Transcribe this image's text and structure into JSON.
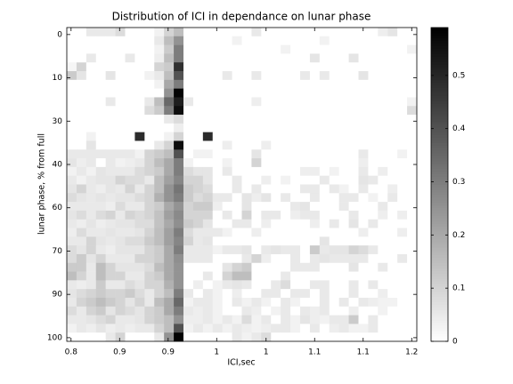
{
  "chart_data": {
    "type": "heatmap",
    "title": "Distribution of ICI in dependance on lunar phase",
    "xlabel": "ICI,sec",
    "ylabel": "lunar phase, % from full",
    "xlim": [
      0.795,
      1.206
    ],
    "ylim": [
      -2.3,
      101.2
    ],
    "y_reversed": true,
    "xticks": [
      0.8,
      {
        "value": 0.857,
        "label": "0.9"
      },
      {
        "value": 0.914,
        "label": "0.9"
      },
      {
        "value": 0.971,
        "label": "1"
      },
      {
        "value": 1.029,
        "label": "1"
      },
      {
        "value": 1.086,
        "label": "1.1"
      },
      {
        "value": 1.143,
        "label": "1.1"
      },
      1.2
    ],
    "yticks": [
      0,
      {
        "value": 14.29,
        "label": "10"
      },
      {
        "value": 28.57,
        "label": "30"
      },
      {
        "value": 42.86,
        "label": "40"
      },
      {
        "value": 57.14,
        "label": "60"
      },
      {
        "value": 71.43,
        "label": "70"
      },
      {
        "value": 85.71,
        "label": "90"
      },
      100
    ],
    "colormap": "gray-reversed",
    "clim": [
      0,
      0.59
    ],
    "cticks": [
      0,
      0.1,
      0.2,
      0.3,
      0.4,
      0.5
    ],
    "z": [
      [
        0,
        0,
        0.05,
        0.05,
        0.05,
        0.08,
        0,
        0,
        0,
        0.03,
        0.1,
        0.15,
        0,
        0,
        0,
        0,
        0,
        0,
        0,
        0.05,
        0,
        0,
        0,
        0,
        0,
        0,
        0,
        0,
        0,
        0,
        0,
        0,
        0.04,
        0.06,
        0,
        0
      ],
      [
        0,
        0,
        0,
        0,
        0,
        0,
        0,
        0,
        0,
        0.05,
        0.15,
        0.25,
        0,
        0,
        0,
        0,
        0,
        0.03,
        0,
        0,
        0,
        0,
        0,
        0,
        0,
        0,
        0.03,
        0,
        0,
        0,
        0,
        0,
        0,
        0,
        0,
        0
      ],
      [
        0,
        0,
        0,
        0,
        0,
        0,
        0,
        0,
        0,
        0.03,
        0.12,
        0.3,
        0,
        0,
        0,
        0,
        0,
        0,
        0,
        0,
        0,
        0,
        0.03,
        0,
        0,
        0,
        0,
        0,
        0,
        0,
        0,
        0,
        0,
        0,
        0,
        0.03
      ],
      [
        0,
        0,
        0.05,
        0,
        0,
        0,
        0.05,
        0,
        0,
        0.04,
        0.15,
        0.3,
        0,
        0,
        0,
        0,
        0,
        0,
        0,
        0,
        0,
        0,
        0,
        0,
        0,
        0.06,
        0,
        0,
        0,
        0.06,
        0,
        0,
        0,
        0,
        0,
        0
      ],
      [
        0.02,
        0.1,
        0,
        0,
        0,
        0,
        0,
        0,
        0,
        0.1,
        0.12,
        0.48,
        0,
        0,
        0,
        0,
        0,
        0,
        0,
        0,
        0,
        0,
        0,
        0,
        0,
        0,
        0,
        0,
        0,
        0,
        0,
        0,
        0,
        0,
        0,
        0
      ],
      [
        0.12,
        0.06,
        0,
        0,
        0.06,
        0,
        0,
        0,
        0.03,
        0.05,
        0.15,
        0.4,
        0,
        0,
        0,
        0,
        0.05,
        0,
        0,
        0.05,
        0,
        0,
        0,
        0,
        0.05,
        0,
        0.05,
        0,
        0,
        0,
        0.06,
        0,
        0,
        0,
        0,
        0
      ],
      [
        0,
        0,
        0,
        0,
        0,
        0,
        0,
        0,
        0,
        0.03,
        0.2,
        0.3,
        0,
        0,
        0,
        0,
        0,
        0,
        0,
        0,
        0,
        0,
        0,
        0,
        0,
        0,
        0,
        0,
        0,
        0,
        0,
        0,
        0,
        0,
        0,
        0
      ],
      [
        0,
        0,
        0,
        0,
        0,
        0,
        0,
        0,
        0,
        0,
        0.25,
        0.58,
        0,
        0,
        0,
        0,
        0,
        0,
        0,
        0,
        0,
        0,
        0,
        0,
        0,
        0,
        0,
        0,
        0,
        0,
        0,
        0,
        0,
        0,
        0,
        0
      ],
      [
        0,
        0,
        0,
        0,
        0.05,
        0,
        0,
        0,
        0.05,
        0.15,
        0.35,
        0.52,
        0.05,
        0,
        0,
        0,
        0,
        0,
        0,
        0.04,
        0,
        0,
        0,
        0,
        0,
        0,
        0,
        0,
        0,
        0,
        0,
        0,
        0,
        0,
        0,
        0.03
      ],
      [
        0,
        0,
        0,
        0,
        0,
        0,
        0,
        0,
        0.08,
        0.12,
        0.3,
        0.56,
        0,
        0,
        0,
        0,
        0,
        0,
        0,
        0,
        0,
        0,
        0,
        0,
        0,
        0,
        0,
        0,
        0,
        0,
        0,
        0,
        0,
        0,
        0,
        0.08
      ],
      [
        0,
        0,
        0,
        0,
        0,
        0,
        0,
        0,
        0,
        0,
        0.05,
        0.08,
        0,
        0,
        0,
        0,
        0,
        0,
        0,
        0,
        0,
        0,
        0,
        0,
        0,
        0,
        0,
        0,
        0,
        0,
        0,
        0,
        0,
        0,
        0,
        0
      ],
      [
        0,
        0,
        0,
        0,
        0,
        0,
        0,
        0,
        0,
        0,
        0,
        0.04,
        0,
        0,
        0,
        0,
        0,
        0,
        0,
        0,
        0,
        0,
        0,
        0,
        0,
        0,
        0,
        0,
        0,
        0,
        0,
        0,
        0,
        0,
        0,
        0
      ],
      [
        0,
        0,
        0.03,
        0,
        0,
        0,
        0,
        0.49,
        0,
        0,
        0.03,
        0.1,
        0,
        0,
        0.49,
        0,
        0,
        0,
        0,
        0,
        0,
        0,
        0,
        0,
        0,
        0,
        0,
        0,
        0,
        0,
        0,
        0,
        0,
        0,
        0,
        0
      ],
      [
        0,
        0,
        0.06,
        0,
        0,
        0,
        0,
        0,
        0,
        0.05,
        0.1,
        0.56,
        0,
        0,
        0,
        0,
        0.04,
        0,
        0,
        0,
        0.04,
        0,
        0,
        0,
        0,
        0,
        0,
        0,
        0,
        0,
        0,
        0,
        0,
        0,
        0,
        0
      ],
      [
        0.05,
        0.05,
        0.05,
        0.05,
        0.05,
        0.05,
        0.05,
        0.03,
        0.1,
        0.12,
        0.15,
        0.4,
        0,
        0.03,
        0.03,
        0,
        0,
        0,
        0,
        0.06,
        0,
        0,
        0,
        0,
        0,
        0,
        0,
        0,
        0,
        0,
        0.05,
        0,
        0,
        0,
        0.03,
        0
      ],
      [
        0.06,
        0.04,
        0.05,
        0,
        0.05,
        0.03,
        0.04,
        0.05,
        0.1,
        0.15,
        0.2,
        0.3,
        0.03,
        0,
        0,
        0,
        0.03,
        0,
        0,
        0.1,
        0,
        0,
        0,
        0,
        0,
        0,
        0,
        0,
        0,
        0,
        0.04,
        0,
        0,
        0,
        0,
        0
      ],
      [
        0.03,
        0.05,
        0.03,
        0.06,
        0.05,
        0.05,
        0.05,
        0.08,
        0.1,
        0.12,
        0.2,
        0.3,
        0.08,
        0.06,
        0.06,
        0,
        0.05,
        0,
        0,
        0,
        0,
        0,
        0,
        0,
        0.04,
        0.04,
        0,
        0.03,
        0,
        0,
        0.05,
        0,
        0.04,
        0,
        0,
        0
      ],
      [
        0.05,
        0.03,
        0.05,
        0.06,
        0.06,
        0.1,
        0.08,
        0.08,
        0.05,
        0.15,
        0.22,
        0.28,
        0.1,
        0.1,
        0.06,
        0,
        0,
        0.05,
        0,
        0,
        0.04,
        0,
        0.03,
        0,
        0,
        0,
        0.05,
        0,
        0,
        0,
        0.06,
        0.05,
        0,
        0,
        0,
        0
      ],
      [
        0.06,
        0.1,
        0.05,
        0.04,
        0.06,
        0.05,
        0.1,
        0.05,
        0.1,
        0.15,
        0.25,
        0.32,
        0.12,
        0.1,
        0.08,
        0,
        0,
        0.05,
        0,
        0.05,
        0,
        0,
        0,
        0,
        0.05,
        0.05,
        0,
        0.05,
        0.03,
        0,
        0.05,
        0,
        0,
        0.04,
        0,
        0
      ],
      [
        0.08,
        0.06,
        0.05,
        0.06,
        0.05,
        0.06,
        0.06,
        0.08,
        0.1,
        0.18,
        0.25,
        0.3,
        0.12,
        0.08,
        0.1,
        0.05,
        0.05,
        0,
        0.06,
        0.04,
        0.06,
        0,
        0.05,
        0,
        0,
        0.05,
        0,
        0,
        0.05,
        0.05,
        0,
        0.03,
        0,
        0.05,
        0,
        0
      ],
      [
        0.05,
        0.05,
        0.05,
        0.05,
        0.04,
        0.08,
        0.05,
        0.05,
        0.1,
        0.12,
        0.2,
        0.25,
        0.1,
        0.12,
        0.12,
        0.04,
        0,
        0,
        0.06,
        0,
        0,
        0,
        0,
        0.05,
        0.06,
        0,
        0,
        0,
        0.05,
        0,
        0,
        0,
        0.05,
        0,
        0,
        0
      ],
      [
        0.06,
        0.08,
        0.05,
        0.08,
        0.1,
        0.05,
        0.1,
        0.08,
        0.1,
        0.14,
        0.22,
        0.27,
        0.1,
        0.1,
        0.1,
        0,
        0.05,
        0,
        0.1,
        0,
        0.05,
        0.05,
        0,
        0.04,
        0.05,
        0.05,
        0,
        0,
        0,
        0.05,
        0,
        0,
        0.04,
        0,
        0.04,
        0
      ],
      [
        0.05,
        0.04,
        0.06,
        0.04,
        0.05,
        0.06,
        0.06,
        0.08,
        0.08,
        0.14,
        0.2,
        0.26,
        0.12,
        0.1,
        0.06,
        0,
        0,
        0.05,
        0.05,
        0,
        0.04,
        0,
        0,
        0,
        0,
        0.04,
        0,
        0.05,
        0,
        0.06,
        0,
        0.05,
        0,
        0,
        0,
        0
      ],
      [
        0.04,
        0.08,
        0.05,
        0.05,
        0.06,
        0.05,
        0.05,
        0.06,
        0.1,
        0.15,
        0.22,
        0.3,
        0.08,
        0.05,
        0.05,
        0.05,
        0.03,
        0,
        0,
        0.04,
        0,
        0,
        0,
        0,
        0,
        0,
        0,
        0,
        0,
        0,
        0.04,
        0,
        0,
        0,
        0.04,
        0
      ],
      [
        0.05,
        0.05,
        0.1,
        0.06,
        0.05,
        0.06,
        0.08,
        0.08,
        0.12,
        0.15,
        0.22,
        0.28,
        0.1,
        0.05,
        0.06,
        0,
        0,
        0,
        0,
        0,
        0,
        0,
        0,
        0,
        0,
        0,
        0.06,
        0,
        0,
        0,
        0,
        0,
        0,
        0,
        0,
        0
      ],
      [
        0.08,
        0.06,
        0.1,
        0.05,
        0.04,
        0.06,
        0.06,
        0.06,
        0.1,
        0.12,
        0.2,
        0.3,
        0.05,
        0.05,
        0.05,
        0.03,
        0.05,
        0.05,
        0.06,
        0,
        0.05,
        0.06,
        0.05,
        0.05,
        0,
        0.12,
        0.05,
        0.06,
        0.06,
        0.1,
        0.08,
        0.05,
        0,
        0,
        0,
        0
      ],
      [
        0.08,
        0.12,
        0.06,
        0.1,
        0.05,
        0.05,
        0.05,
        0.1,
        0.1,
        0.12,
        0.2,
        0.26,
        0.05,
        0.05,
        0.05,
        0,
        0,
        0,
        0.05,
        0.1,
        0.04,
        0,
        0,
        0.05,
        0,
        0.05,
        0.06,
        0.05,
        0.05,
        0.05,
        0.05,
        0,
        0,
        0,
        0.05,
        0
      ],
      [
        0.12,
        0.12,
        0.05,
        0.15,
        0.1,
        0.06,
        0.06,
        0.06,
        0.08,
        0.15,
        0.2,
        0.25,
        0,
        0,
        0,
        0,
        0.06,
        0.1,
        0.12,
        0,
        0,
        0,
        0,
        0.05,
        0.05,
        0.05,
        0,
        0,
        0,
        0.06,
        0,
        0,
        0.05,
        0,
        0,
        0
      ],
      [
        0.15,
        0.1,
        0.05,
        0.15,
        0.1,
        0.1,
        0.05,
        0.05,
        0.1,
        0.12,
        0.2,
        0.25,
        0,
        0,
        0.05,
        0,
        0.1,
        0.15,
        0.15,
        0,
        0,
        0,
        0.05,
        0,
        0,
        0,
        0,
        0,
        0,
        0,
        0,
        0,
        0,
        0,
        0,
        0
      ],
      [
        0.05,
        0.04,
        0.05,
        0.12,
        0.05,
        0.05,
        0.08,
        0.06,
        0.1,
        0.1,
        0.18,
        0.25,
        0,
        0.04,
        0,
        0.03,
        0.05,
        0.06,
        0.05,
        0,
        0,
        0.05,
        0.08,
        0,
        0,
        0.05,
        0.05,
        0,
        0,
        0.05,
        0,
        0.05,
        0,
        0,
        0,
        0
      ],
      [
        0.06,
        0.08,
        0.1,
        0.12,
        0.1,
        0.1,
        0.12,
        0.08,
        0.05,
        0.1,
        0.15,
        0.3,
        0.05,
        0,
        0.05,
        0.03,
        0,
        0.04,
        0,
        0,
        0.05,
        0.05,
        0,
        0.05,
        0.05,
        0,
        0.05,
        0,
        0,
        0.05,
        0,
        0,
        0.04,
        0,
        0,
        0
      ],
      [
        0.05,
        0.1,
        0.12,
        0.15,
        0.12,
        0.1,
        0.06,
        0.1,
        0.05,
        0.15,
        0.2,
        0.35,
        0.03,
        0.05,
        0.05,
        0.03,
        0,
        0.05,
        0.03,
        0.05,
        0.03,
        0,
        0.05,
        0.03,
        0,
        0,
        0.05,
        0,
        0.05,
        0,
        0.05,
        0.04,
        0.03,
        0.03,
        0,
        0
      ],
      [
        0.08,
        0.05,
        0.1,
        0.12,
        0.06,
        0.1,
        0.08,
        0.06,
        0.1,
        0.12,
        0.2,
        0.3,
        0.05,
        0.04,
        0.05,
        0.03,
        0,
        0,
        0.05,
        0.04,
        0,
        0.03,
        0.05,
        0,
        0.05,
        0.04,
        0.05,
        0,
        0,
        0.04,
        0,
        0,
        0.03,
        0,
        0,
        0
      ],
      [
        0.05,
        0.05,
        0.06,
        0.08,
        0.1,
        0.05,
        0.05,
        0.06,
        0.1,
        0.12,
        0.15,
        0.25,
        0.04,
        0.04,
        0.05,
        0.03,
        0.05,
        0.03,
        0.08,
        0.03,
        0.05,
        0,
        0.05,
        0.03,
        0.06,
        0.04,
        0.03,
        0.05,
        0.05,
        0.12,
        0,
        0.05,
        0,
        0,
        0,
        0
      ],
      [
        0.03,
        0.05,
        0.04,
        0.06,
        0.04,
        0.05,
        0.04,
        0.05,
        0.05,
        0.1,
        0.15,
        0.4,
        0.03,
        0.05,
        0.03,
        0.05,
        0.03,
        0.05,
        0.04,
        0.03,
        0.04,
        0.05,
        0.05,
        0.03,
        0,
        0.05,
        0,
        0.04,
        0.05,
        0.03,
        0.03,
        0.05,
        0,
        0,
        0,
        0
      ],
      [
        0,
        0,
        0,
        0,
        0.05,
        0.1,
        0,
        0,
        0,
        0.05,
        0.25,
        0.58,
        0,
        0,
        0,
        0,
        0,
        0.05,
        0.03,
        0.05,
        0.08,
        0,
        0,
        0,
        0,
        0,
        0,
        0,
        0,
        0,
        0,
        0,
        0,
        0,
        0,
        0
      ]
    ]
  }
}
